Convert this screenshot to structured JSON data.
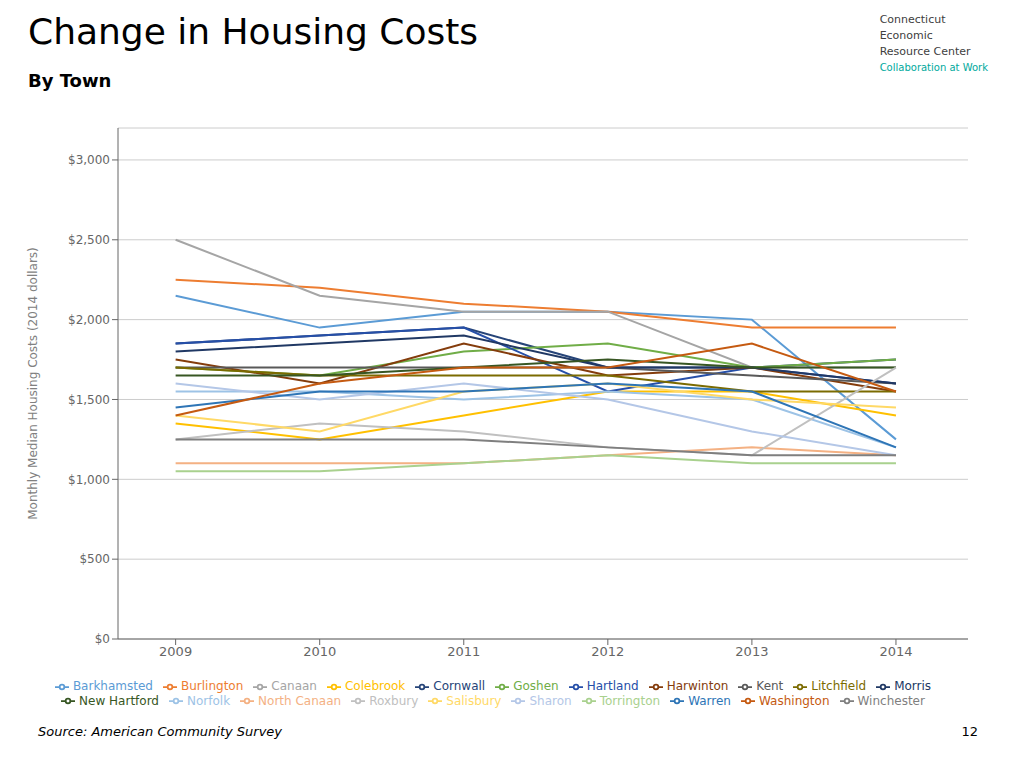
{
  "chart_data": {
    "type": "line",
    "title": "Change in Housing Costs",
    "subtitle": "By Town",
    "ylabel": "Monthly Median Housing Costs (2014 dollars)",
    "annotations": [
      "Source: American Community Survey",
      "12",
      "Connecticut\nEconomic\nResource Center",
      "Collaboration at Work"
    ],
    "x": [
      2009,
      2010,
      2011,
      2012,
      2013,
      2014
    ],
    "xlim": [
      2008.6,
      2014.5
    ],
    "xticks": [
      2009,
      2010,
      2011,
      2012,
      2013,
      2014
    ],
    "ylim": [
      0,
      3200
    ],
    "yticks": [
      {
        "value": 0,
        "label": "$0"
      },
      {
        "value": 500,
        "label": "$500"
      },
      {
        "value": 1000,
        "label": "$1,000"
      },
      {
        "value": 1500,
        "label": "$1,500"
      },
      {
        "value": 2000,
        "label": "$2,000"
      },
      {
        "value": 2500,
        "label": "$2,500"
      },
      {
        "value": 3000,
        "label": "$3,000"
      }
    ],
    "grid": true,
    "legend": "bottom",
    "series": [
      {
        "name": "Barkhamsted",
        "color": "#5B9BD5",
        "values": [
          2150,
          1950,
          2050,
          2050,
          2000,
          1250
        ]
      },
      {
        "name": "Burlington",
        "color": "#ED7D31",
        "values": [
          2250,
          2200,
          2100,
          2050,
          1950,
          1950
        ]
      },
      {
        "name": "Canaan",
        "color": "#A5A5A5",
        "values": [
          2500,
          2150,
          2050,
          2050,
          1700,
          1700
        ]
      },
      {
        "name": "Colebrook",
        "color": "#FFC000",
        "values": [
          1350,
          1250,
          1400,
          1550,
          1550,
          1400
        ]
      },
      {
        "name": "Cornwall",
        "color": "#264478",
        "values": [
          1850,
          1900,
          1950,
          1700,
          1700,
          1750
        ]
      },
      {
        "name": "Goshen",
        "color": "#70AD47",
        "values": [
          1700,
          1650,
          1800,
          1850,
          1700,
          1750
        ]
      },
      {
        "name": "Hartland",
        "color": "#264FA8",
        "values": [
          1850,
          1900,
          1950,
          1550,
          1700,
          1600
        ]
      },
      {
        "name": "Harwinton",
        "color": "#843C0C",
        "values": [
          1750,
          1600,
          1850,
          1650,
          1700,
          1550
        ]
      },
      {
        "name": "Kent",
        "color": "#595959",
        "values": [
          1700,
          1700,
          1700,
          1700,
          1650,
          1600
        ]
      },
      {
        "name": "Litchfield",
        "color": "#7B6B00",
        "values": [
          1700,
          1650,
          1650,
          1650,
          1550,
          1550
        ]
      },
      {
        "name": "Morris",
        "color": "#203864",
        "values": [
          1800,
          1850,
          1900,
          1700,
          1700,
          1600
        ]
      },
      {
        "name": "New Hartford",
        "color": "#375623",
        "values": [
          1650,
          1650,
          1700,
          1750,
          1700,
          1700
        ]
      },
      {
        "name": "Norfolk",
        "color": "#9DC3E6",
        "values": [
          1550,
          1550,
          1500,
          1550,
          1500,
          1200
        ]
      },
      {
        "name": "North Canaan",
        "color": "#F4B183",
        "values": [
          1100,
          1100,
          1100,
          1150,
          1200,
          1150
        ]
      },
      {
        "name": "Roxbury",
        "color": "#C0C0C0",
        "values": [
          1250,
          1350,
          1300,
          1200,
          1150,
          1700
        ]
      },
      {
        "name": "Salisbury",
        "color": "#FFD966",
        "values": [
          1400,
          1300,
          1550,
          1600,
          1500,
          1450
        ]
      },
      {
        "name": "Sharon",
        "color": "#B4C7E7",
        "values": [
          1600,
          1500,
          1600,
          1500,
          1300,
          1150
        ]
      },
      {
        "name": "Torrington",
        "color": "#A9D18E",
        "values": [
          1050,
          1050,
          1100,
          1150,
          1100,
          1100
        ]
      },
      {
        "name": "Warren",
        "color": "#2E75B6",
        "values": [
          1450,
          1550,
          1550,
          1600,
          1550,
          1200
        ]
      },
      {
        "name": "Washington",
        "color": "#C55A11",
        "values": [
          1400,
          1600,
          1700,
          1700,
          1850,
          1550
        ]
      },
      {
        "name": "Winchester",
        "color": "#7F7F7F",
        "values": [
          1250,
          1250,
          1250,
          1200,
          1150,
          1150
        ]
      }
    ]
  }
}
